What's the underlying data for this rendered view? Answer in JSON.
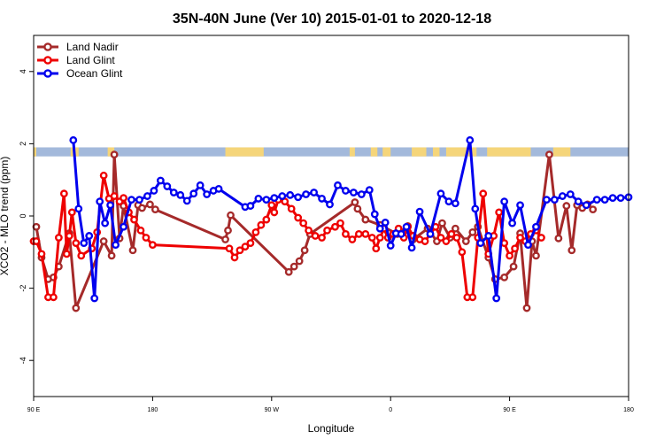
{
  "chart_data": {
    "type": "line",
    "title": "35N-40N June (Ver 10)   2015-01-01 to 2020-12-18",
    "xlabel": "Longitude",
    "ylabel": "XCO2 - MLO trend (ppm)",
    "xlim": [
      90,
      540
    ],
    "ylim": [
      -5,
      5
    ],
    "x_ticks": [
      {
        "value": 90,
        "label": "90 E"
      },
      {
        "value": 180,
        "label": "180"
      },
      {
        "value": 270,
        "label": "90 W"
      },
      {
        "value": 360,
        "label": "0"
      },
      {
        "value": 450,
        "label": "90 E"
      },
      {
        "value": 540,
        "label": "180"
      }
    ],
    "y_ticks": [
      -4,
      -2,
      0,
      2,
      4
    ],
    "grid": false,
    "legend_position": "top-left",
    "land_ocean_band": {
      "y_range": [
        1.65,
        1.9
      ],
      "ocean_color": "#a3b9db",
      "land_color": "#f5d57a",
      "land_segments": [
        [
          90,
          92
        ],
        [
          118,
          124
        ],
        [
          146,
          151
        ],
        [
          235,
          264
        ],
        [
          329,
          333
        ],
        [
          345,
          350
        ],
        [
          354,
          360
        ],
        [
          376,
          387
        ],
        [
          392,
          397
        ],
        [
          402,
          425
        ],
        [
          433,
          466
        ],
        [
          483,
          496
        ]
      ]
    },
    "series": [
      {
        "name": "Land Nadir",
        "color": "#a52a2a",
        "x": [
          92,
          96,
          101,
          105,
          109,
          117,
          122,
          143,
          149,
          151,
          155,
          158,
          165,
          169,
          172,
          178,
          182,
          235,
          237,
          239,
          283,
          287,
          291,
          295,
          299,
          333,
          335,
          341,
          352,
          365,
          373,
          377,
          388,
          395,
          399,
          405,
          409,
          417,
          422,
          426,
          434,
          439,
          446,
          453,
          458,
          463,
          467,
          470,
          480,
          487,
          493,
          497,
          501,
          505,
          509,
          513
        ],
        "y": [
          -0.3,
          -1.15,
          -1.75,
          -1.7,
          -1.4,
          -0.48,
          -2.55,
          -0.7,
          -1.1,
          1.7,
          -0.62,
          0.28,
          -0.95,
          0.3,
          0.22,
          0.32,
          0.18,
          -0.65,
          -0.4,
          0.02,
          -1.55,
          -1.4,
          -1.25,
          -0.95,
          -0.5,
          0.38,
          0.2,
          -0.1,
          -0.25,
          -0.5,
          -0.28,
          -0.65,
          -0.35,
          -0.7,
          -0.2,
          -0.6,
          -0.35,
          -0.7,
          -0.45,
          -0.3,
          -1.15,
          -1.75,
          -1.7,
          -1.4,
          -0.48,
          -2.55,
          -0.7,
          -1.1,
          1.7,
          -0.62,
          0.28,
          -0.95,
          0.3,
          0.22,
          0.32,
          0.18
        ]
      },
      {
        "name": "Land Glint",
        "color": "#ee0000",
        "x": [
          90,
          92,
          96,
          101,
          105,
          109,
          113,
          115,
          117,
          119,
          122,
          126,
          134,
          138,
          143,
          147,
          151,
          155,
          158,
          162,
          166,
          171,
          175,
          180,
          238,
          242,
          246,
          250,
          254,
          258,
          262,
          266,
          270,
          272,
          275,
          280,
          285,
          290,
          294,
          298,
          303,
          308,
          312,
          318,
          322,
          326,
          331,
          336,
          341,
          346,
          349,
          352,
          355,
          358,
          362,
          366,
          370,
          373,
          377,
          382,
          386,
          390,
          394,
          398,
          402,
          406,
          410,
          414,
          418,
          422,
          426,
          430,
          434,
          438,
          442,
          446,
          450,
          454,
          458,
          462,
          466,
          470,
          474
        ],
        "y": [
          -0.7,
          -0.7,
          -1.05,
          -2.25,
          -2.25,
          -0.6,
          0.62,
          -1.05,
          -0.55,
          0.1,
          -0.75,
          -1.1,
          -0.9,
          -0.45,
          1.12,
          0.48,
          0.55,
          0.4,
          0.5,
          0.1,
          -0.1,
          -0.4,
          -0.6,
          -0.8,
          -0.9,
          -1.15,
          -0.95,
          -0.85,
          -0.75,
          -0.45,
          -0.25,
          -0.1,
          0.3,
          0.1,
          0.45,
          0.4,
          0.2,
          -0.05,
          -0.2,
          -0.4,
          -0.55,
          -0.6,
          -0.4,
          -0.3,
          -0.2,
          -0.5,
          -0.65,
          -0.5,
          -0.5,
          -0.6,
          -0.9,
          -0.6,
          -0.35,
          -0.6,
          -0.5,
          -0.35,
          -0.6,
          -0.3,
          -0.55,
          -0.65,
          -0.7,
          -0.5,
          -0.3,
          -0.6,
          -0.7,
          -0.5,
          -0.6,
          -1.0,
          -2.25,
          -2.25,
          -0.6,
          0.62,
          -1.05,
          -0.55,
          0.1,
          -0.75,
          -1.1,
          -0.9,
          -0.6,
          -0.7,
          -0.5,
          -0.4,
          -0.6
        ]
      },
      {
        "name": "Ocean Glint",
        "color": "#0000ee",
        "x": [
          120,
          124,
          128,
          132,
          136,
          140,
          144,
          148,
          152,
          158,
          164,
          170,
          176,
          181,
          186,
          191,
          196,
          201,
          206,
          211,
          216,
          221,
          226,
          230,
          250,
          254,
          260,
          266,
          272,
          278,
          284,
          290,
          296,
          302,
          308,
          314,
          320,
          326,
          332,
          338,
          344,
          348,
          352,
          356,
          360,
          364,
          368,
          372,
          376,
          382,
          390,
          398,
          404,
          409,
          420,
          424,
          428,
          434,
          440,
          446,
          452,
          458,
          464,
          470,
          478,
          484,
          490,
          496,
          502,
          508,
          516,
          522,
          528,
          534,
          540
        ],
        "y": [
          2.1,
          0.2,
          -0.75,
          -0.55,
          -2.28,
          0.4,
          -0.2,
          0.3,
          -0.8,
          -0.3,
          0.45,
          0.45,
          0.55,
          0.7,
          0.98,
          0.82,
          0.65,
          0.58,
          0.42,
          0.62,
          0.85,
          0.6,
          0.7,
          0.75,
          0.25,
          0.28,
          0.48,
          0.45,
          0.5,
          0.55,
          0.58,
          0.52,
          0.6,
          0.65,
          0.48,
          0.32,
          0.85,
          0.7,
          0.65,
          0.6,
          0.72,
          0.05,
          -0.35,
          -0.18,
          -0.82,
          -0.48,
          -0.5,
          -0.3,
          -0.88,
          0.12,
          -0.5,
          0.62,
          0.4,
          0.35,
          2.1,
          0.2,
          -0.75,
          -0.55,
          -2.28,
          0.4,
          -0.2,
          0.3,
          -0.8,
          -0.3,
          0.45,
          0.45,
          0.55,
          0.6,
          0.4,
          0.3,
          0.45,
          0.45,
          0.5,
          0.5,
          0.52
        ]
      }
    ]
  }
}
